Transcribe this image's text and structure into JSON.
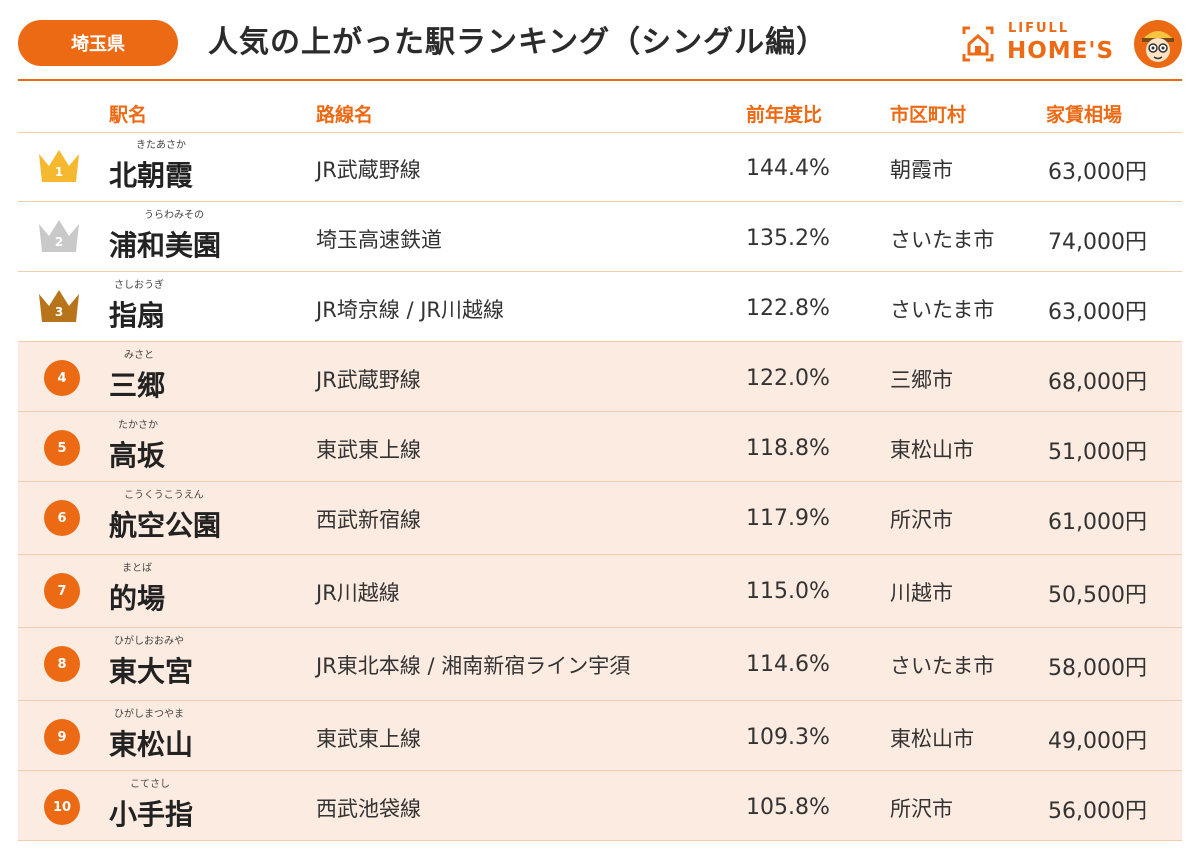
{
  "header": {
    "prefecture_badge": "埼玉県",
    "title": "人気の上がった駅ランキング（シングル編）",
    "logo_top": "LIFULL",
    "logo_main": "HOME'S"
  },
  "columns": {
    "station": "駅名",
    "line": "路線名",
    "yoy": "前年度比",
    "city": "市区町村",
    "rent": "家賃相場"
  },
  "colors": {
    "accent": "#ec6a14",
    "gold": "#f5b82e",
    "silver": "#c9c9c9",
    "bronze": "#b8741a",
    "highlight_row": "#fcebe0"
  },
  "rows": [
    {
      "rank": "1",
      "furigana": "きたあさか",
      "station": "北朝霞",
      "line": "JR武蔵野線",
      "yoy": "144.4%",
      "city": "朝霞市",
      "rent": "63,000円"
    },
    {
      "rank": "2",
      "furigana": "うらわみその",
      "station": "浦和美園",
      "line": "埼玉高速鉄道",
      "yoy": "135.2%",
      "city": "さいたま市",
      "rent": "74,000円"
    },
    {
      "rank": "3",
      "furigana": "さしおうぎ",
      "station": "指扇",
      "line": "JR埼京線 / JR川越線",
      "yoy": "122.8%",
      "city": "さいたま市",
      "rent": "63,000円"
    },
    {
      "rank": "4",
      "furigana": "みさと",
      "station": "三郷",
      "line": "JR武蔵野線",
      "yoy": "122.0%",
      "city": "三郷市",
      "rent": "68,000円"
    },
    {
      "rank": "5",
      "furigana": "たかさか",
      "station": "高坂",
      "line": "東武東上線",
      "yoy": "118.8%",
      "city": "東松山市",
      "rent": "51,000円"
    },
    {
      "rank": "6",
      "furigana": "こうくうこうえん",
      "station": "航空公園",
      "line": "西武新宿線",
      "yoy": "117.9%",
      "city": "所沢市",
      "rent": "61,000円"
    },
    {
      "rank": "7",
      "furigana": "まとば",
      "station": "的場",
      "line": "JR川越線",
      "yoy": "115.0%",
      "city": "川越市",
      "rent": "50,500円"
    },
    {
      "rank": "8",
      "furigana": "ひがしおおみや",
      "station": "東大宮",
      "line": "JR東北本線 / 湘南新宿ライン宇須",
      "yoy": "114.6%",
      "city": "さいたま市",
      "rent": "58,000円"
    },
    {
      "rank": "9",
      "furigana": "ひがしまつやま",
      "station": "東松山",
      "line": "東武東上線",
      "yoy": "109.3%",
      "city": "東松山市",
      "rent": "49,000円"
    },
    {
      "rank": "10",
      "furigana": "こてさし",
      "station": "小手指",
      "line": "西武池袋線",
      "yoy": "105.8%",
      "city": "所沢市",
      "rent": "56,000円"
    }
  ]
}
